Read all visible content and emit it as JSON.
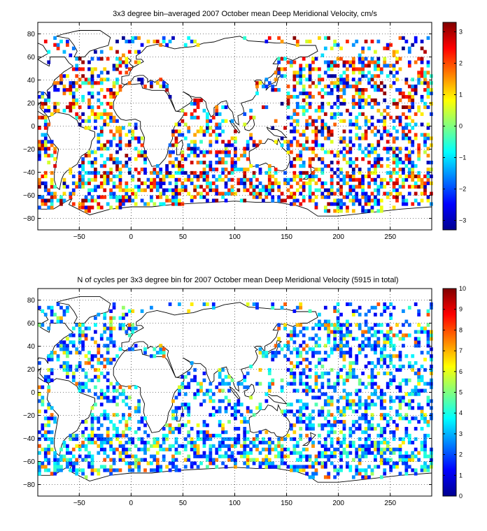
{
  "chart_data": [
    {
      "type": "heatmap",
      "title": "3x3 degree bin–averaged 2007 October mean Deep Meridional Velocity, cm/s",
      "xlim": [
        -90,
        290
      ],
      "ylim": [
        -90,
        90
      ],
      "bin_size_deg": 3,
      "xticks": [
        -50,
        0,
        50,
        100,
        150,
        200,
        250
      ],
      "yticks": [
        80,
        60,
        40,
        20,
        0,
        -20,
        -40,
        -60,
        -80
      ],
      "xtick_labels": [
        "−50",
        "0",
        "50",
        "100",
        "150",
        "200",
        "250"
      ],
      "ytick_labels": [
        "80",
        "60",
        "40",
        "20",
        "0",
        "−20",
        "−40",
        "−60",
        "−80"
      ],
      "grid": true,
      "colormap": "jet",
      "colorbar": {
        "range": [
          -3.3,
          3.3
        ],
        "ticks": [
          3,
          2,
          1,
          0,
          -1,
          -2,
          -3
        ],
        "tick_labels": [
          "3",
          "2",
          "1",
          "0",
          "−1",
          "−2",
          "−3"
        ]
      },
      "value_distribution": "random-signed"
    },
    {
      "type": "heatmap",
      "title": "N of cycles per 3x3 degree bin for 2007 October mean Deep Meridional Velocity (5915 in total)",
      "xlim": [
        -90,
        290
      ],
      "ylim": [
        -90,
        90
      ],
      "bin_size_deg": 3,
      "xticks": [
        -50,
        0,
        50,
        100,
        150,
        200,
        250
      ],
      "yticks": [
        80,
        60,
        40,
        20,
        0,
        -20,
        -40,
        -60,
        -80
      ],
      "xtick_labels": [
        "−50",
        "0",
        "50",
        "100",
        "150",
        "200",
        "250"
      ],
      "ytick_labels": [
        "80",
        "60",
        "40",
        "20",
        "0",
        "−20",
        "−40",
        "−60",
        "−80"
      ],
      "grid": true,
      "colormap": "jet",
      "colorbar": {
        "range": [
          0,
          10
        ],
        "ticks": [
          10,
          9,
          8,
          7,
          6,
          5,
          4,
          3,
          2,
          1,
          0
        ],
        "tick_labels": [
          "10",
          "9",
          "8",
          "7",
          "6",
          "5",
          "4",
          "3",
          "2",
          "1",
          "0"
        ]
      },
      "value_distribution": "low-counts"
    }
  ]
}
